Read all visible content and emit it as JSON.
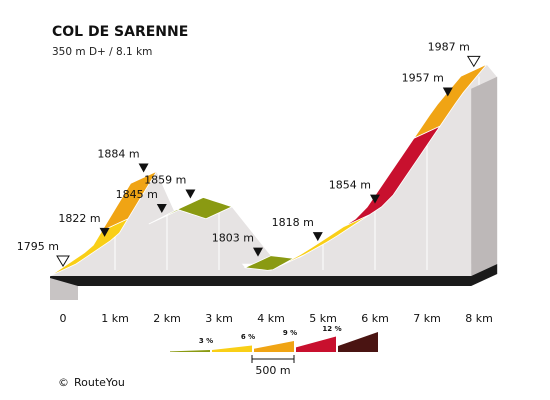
{
  "chart_data": {
    "type": "area",
    "title": "COL DE SARENNE",
    "subtitle": "350 m D+ / 8.1 km",
    "x_unit": "km",
    "y_unit": "m",
    "xlim": [
      0,
      8.1
    ],
    "x_ticks": [
      "0",
      "1 km",
      "2 km",
      "3 km",
      "4 km",
      "5 km",
      "6 km",
      "7 km",
      "8 km"
    ],
    "profile": [
      {
        "x": 0.0,
        "y": 1795
      },
      {
        "x": 0.8,
        "y": 1822
      },
      {
        "x": 1.55,
        "y": 1884
      },
      {
        "x": 1.9,
        "y": 1845
      },
      {
        "x": 2.45,
        "y": 1859
      },
      {
        "x": 3.0,
        "y": 1850
      },
      {
        "x": 3.75,
        "y": 1803
      },
      {
        "x": 4.25,
        "y": 1800
      },
      {
        "x": 4.9,
        "y": 1818
      },
      {
        "x": 6.0,
        "y": 1854
      },
      {
        "x": 7.4,
        "y": 1957
      },
      {
        "x": 7.9,
        "y": 1987
      },
      {
        "x": 8.1,
        "y": 1975
      }
    ],
    "segments": [
      {
        "from": 0.0,
        "to": 1.0,
        "gradient_class": 6
      },
      {
        "from": 1.0,
        "to": 1.55,
        "gradient_class": 9
      },
      {
        "from": 1.9,
        "to": 2.45,
        "gradient_class": 3
      },
      {
        "from": 2.45,
        "to": 3.0,
        "gradient_class": 3
      },
      {
        "from": 3.75,
        "to": 4.4,
        "gradient_class": 3
      },
      {
        "from": 4.4,
        "to": 5.65,
        "gradient_class": 6
      },
      {
        "from": 5.65,
        "to": 7.0,
        "gradient_class": 12
      },
      {
        "from": 7.0,
        "to": 7.9,
        "gradient_class": 9
      }
    ],
    "labels": [
      {
        "text": "1795 m",
        "x": 0.0,
        "y": 1795,
        "marker": "summit"
      },
      {
        "text": "1822 m",
        "x": 0.8,
        "y": 1822,
        "marker": "down"
      },
      {
        "text": "1884 m",
        "x": 1.55,
        "y": 1884,
        "marker": "down"
      },
      {
        "text": "1845 m",
        "x": 1.9,
        "y": 1845,
        "marker": "down"
      },
      {
        "text": "1859 m",
        "x": 2.45,
        "y": 1859,
        "marker": "down"
      },
      {
        "text": "1803 m",
        "x": 3.75,
        "y": 1803,
        "marker": "down"
      },
      {
        "text": "1818 m",
        "x": 4.9,
        "y": 1818,
        "marker": "down"
      },
      {
        "text": "1854 m",
        "x": 6.0,
        "y": 1854,
        "marker": "down"
      },
      {
        "text": "1957 m",
        "x": 7.4,
        "y": 1957,
        "marker": "down"
      },
      {
        "text": "1987 m",
        "x": 7.9,
        "y": 1987,
        "marker": "summit"
      }
    ],
    "legend": [
      {
        "label": "3 %",
        "value": 3
      },
      {
        "label": "6 %",
        "value": 6
      },
      {
        "label": "9 %",
        "value": 9
      },
      {
        "label": "12 %",
        "value": 12
      }
    ],
    "scale_label": "500 m",
    "colors": {
      "3": "#8a9a12",
      "6": "#f9cf17",
      "9": "#f0a414",
      "12": "#c8102e",
      "15": "#4a1412",
      "wall": "#e6e3e3",
      "side": "#bdb8b8",
      "base": "#1a1a1a"
    }
  },
  "footer": {
    "copyright_symbol": "©",
    "brand": "RouteYou"
  }
}
